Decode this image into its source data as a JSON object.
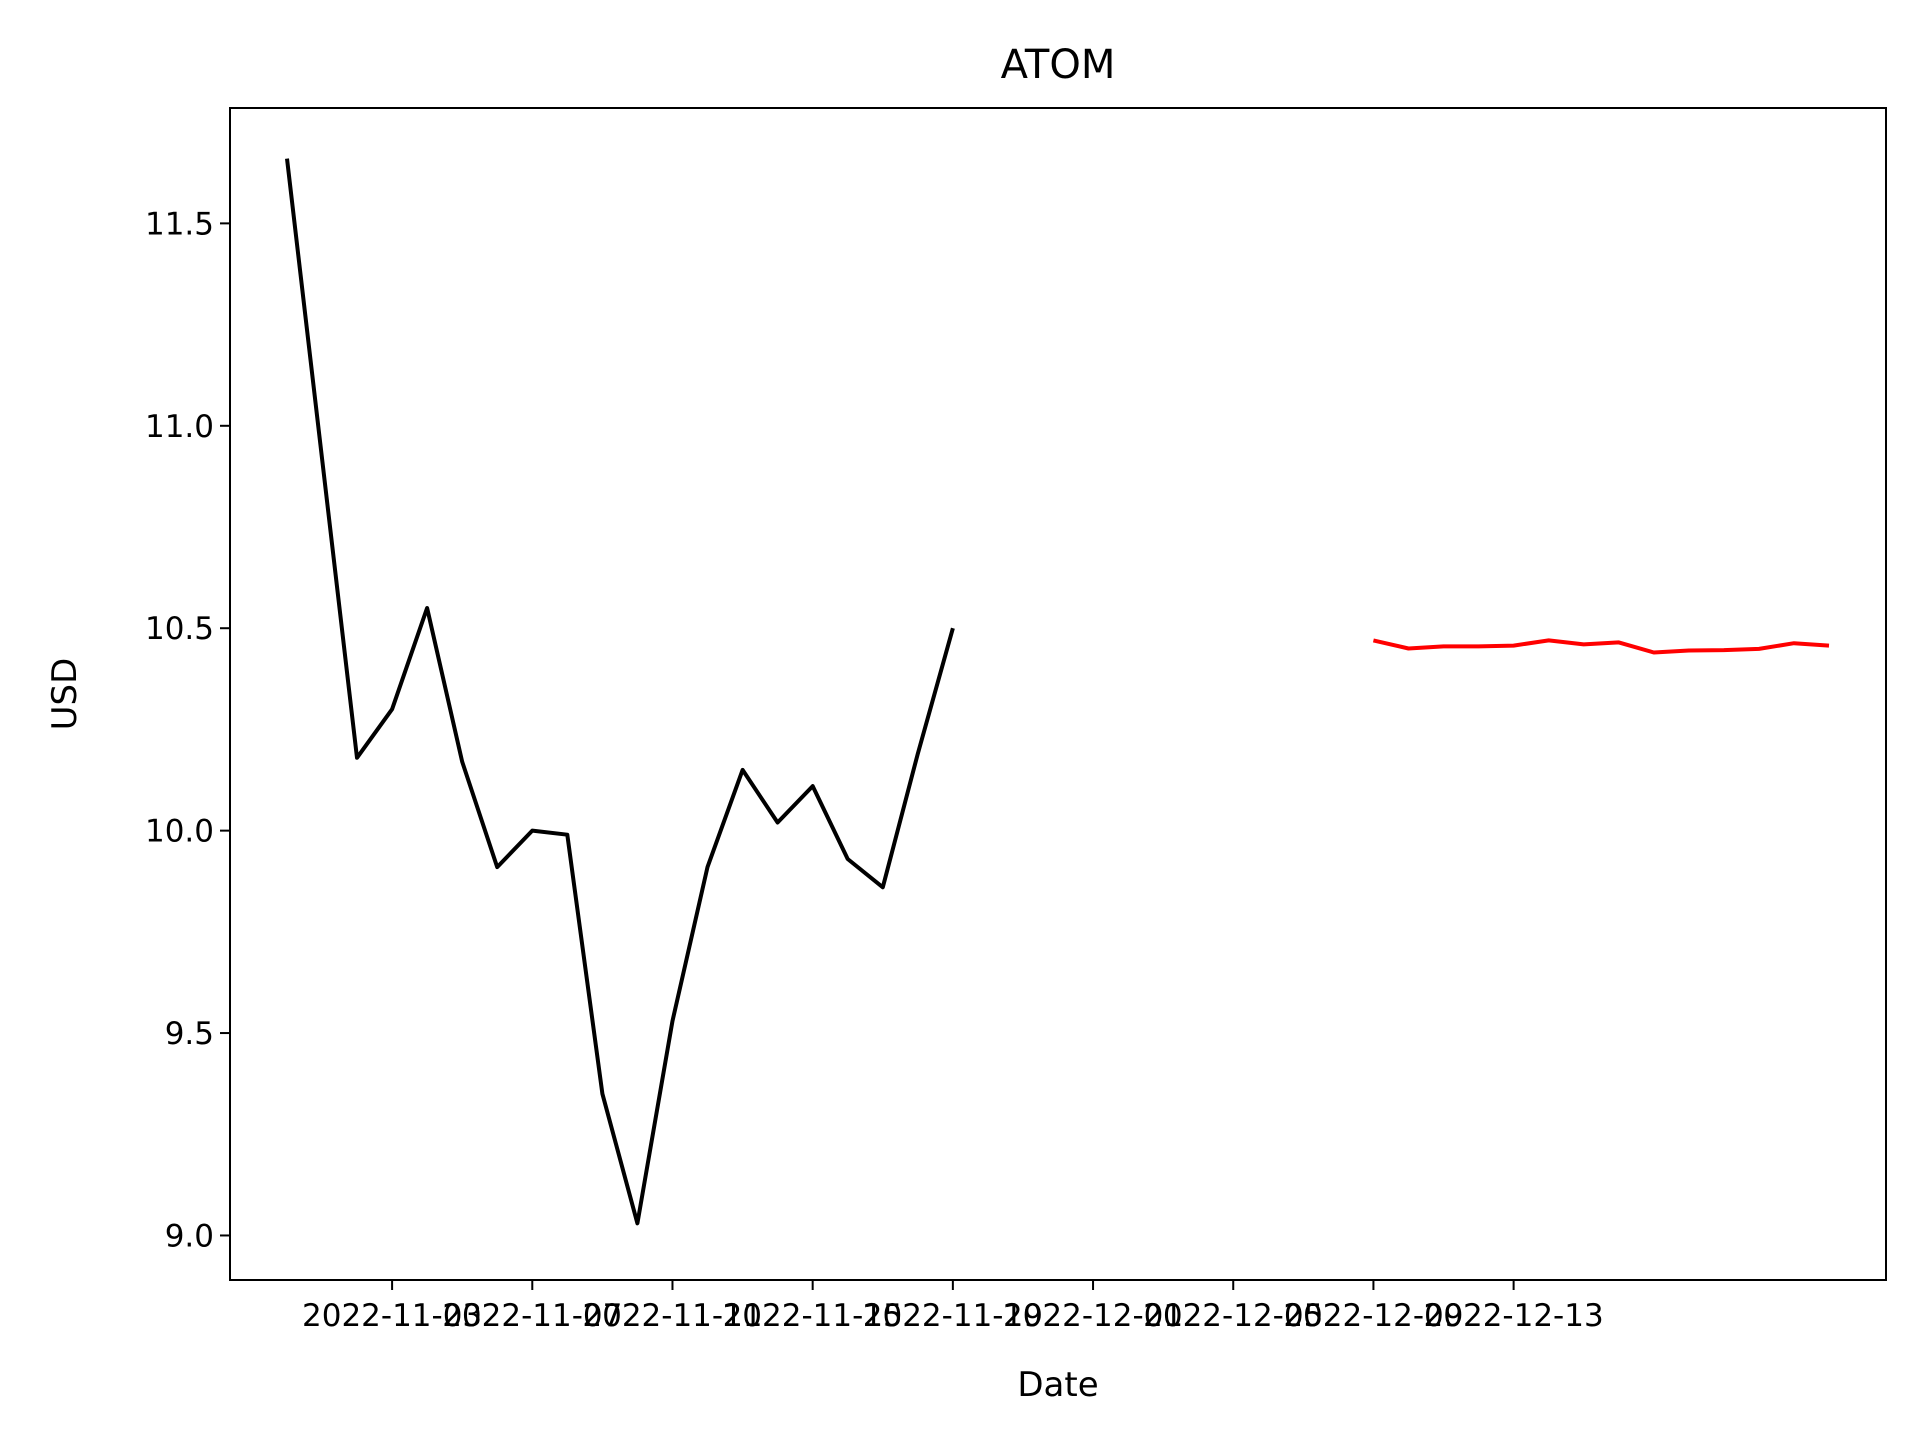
{
  "chart_data": {
    "type": "line",
    "title": "ATOM",
    "xlabel": "Date",
    "ylabel": "USD",
    "xlim": [
      "2022-10-29T09:00",
      "2022-12-15T15:00"
    ],
    "ylim": [
      8.89,
      11.785
    ],
    "x_ticks": [
      "2022-11-03",
      "2022-11-07",
      "2022-11-11",
      "2022-11-15",
      "2022-11-19",
      "2022-12-01",
      "2022-12-05",
      "2022-12-09",
      "2022-12-13"
    ],
    "y_ticks": [
      "9.0",
      "9.5",
      "10.0",
      "10.5",
      "11.0",
      "11.5"
    ],
    "grid": false,
    "series": [
      {
        "color": "#000000",
        "x": [
          "2022-10-31",
          "2022-11-01",
          "2022-11-02",
          "2022-11-03",
          "2022-11-04",
          "2022-11-05",
          "2022-11-06",
          "2022-11-07",
          "2022-11-08",
          "2022-11-09",
          "2022-11-10",
          "2022-11-11",
          "2022-11-12",
          "2022-11-13",
          "2022-11-14",
          "2022-11-15",
          "2022-11-16",
          "2022-11-17",
          "2022-11-18",
          "2022-11-19",
          "2022-11-20"
        ],
        "values": [
          11.66,
          10.92,
          10.18,
          10.3,
          10.55,
          10.17,
          9.91,
          10.0,
          9.99,
          9.35,
          9.03,
          9.53,
          9.91,
          10.15,
          10.02,
          10.11,
          9.93,
          9.86,
          10.19,
          10.5,
          null
        ]
      },
      {
        "color": "#ff0000",
        "x": [
          "2022-12-01",
          "2022-12-02",
          "2022-12-03",
          "2022-12-04",
          "2022-12-05",
          "2022-12-06",
          "2022-12-07",
          "2022-12-08",
          "2022-12-09",
          "2022-12-10",
          "2022-12-11",
          "2022-12-12",
          "2022-12-13",
          "2022-12-14"
        ],
        "values": [
          10.47,
          10.45,
          10.455,
          10.455,
          10.457,
          10.47,
          10.46,
          10.465,
          10.44,
          10.445,
          10.446,
          10.449,
          10.463,
          10.457
        ]
      }
    ]
  }
}
